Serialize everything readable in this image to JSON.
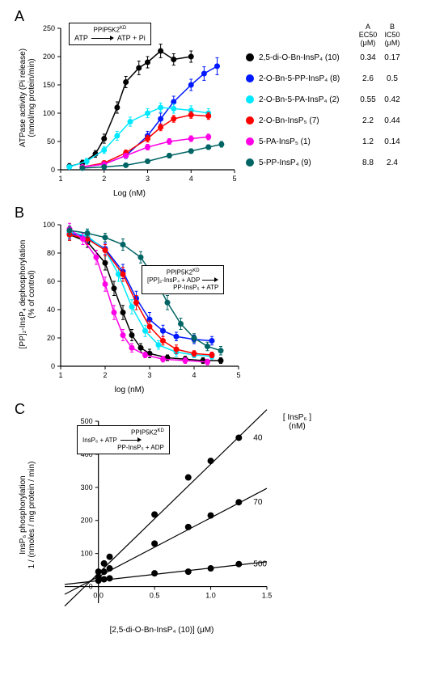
{
  "panelA": {
    "label": "A",
    "equation": {
      "top": "PPIP5K2",
      "top_sup": "KD",
      "left": "ATP",
      "right": "ATP + Pi"
    },
    "ylabel_line1": "ATPase activity (Pi release)",
    "ylabel_line2": "(nmol/mg protein/min)",
    "xlabel": "Log (nM)",
    "ylim": [
      0,
      250
    ],
    "ytick_step": 50,
    "xlim": [
      1,
      5
    ],
    "xtick_step": 1,
    "table_headers": {
      "a1": "A",
      "a2": "EC50",
      "a3": "(μM)",
      "b1": "B",
      "b2": "IC50",
      "b3": "(μM)"
    },
    "series": [
      {
        "color": "#000000",
        "label": "2,5-di-O-Bn-InsP₄ (10)",
        "ec50": "0.34",
        "ic50": "0.17",
        "points": [
          [
            1.2,
            6
          ],
          [
            1.5,
            12
          ],
          [
            1.8,
            28
          ],
          [
            2.0,
            55
          ],
          [
            2.3,
            110
          ],
          [
            2.5,
            155
          ],
          [
            2.8,
            180
          ],
          [
            3.0,
            190
          ],
          [
            3.3,
            210
          ],
          [
            3.6,
            195
          ],
          [
            4.0,
            200
          ]
        ],
        "err": [
          5,
          5,
          6,
          8,
          10,
          10,
          12,
          10,
          12,
          10,
          10
        ]
      },
      {
        "color": "#0018ff",
        "label": "2-O-Bn-5-PP-InsP₄ (8)",
        "ec50": "2.6",
        "ic50": "0.5",
        "points": [
          [
            1.5,
            5
          ],
          [
            2.0,
            10
          ],
          [
            2.5,
            25
          ],
          [
            3.0,
            60
          ],
          [
            3.3,
            90
          ],
          [
            3.6,
            120
          ],
          [
            4.0,
            150
          ],
          [
            4.3,
            170
          ],
          [
            4.6,
            183
          ]
        ],
        "err": [
          3,
          4,
          5,
          8,
          10,
          10,
          10,
          12,
          15
        ]
      },
      {
        "color": "#00e8ff",
        "label": "2-O-Bn-5-PA-InsP₄ (2)",
        "ec50": "0.55",
        "ic50": "0.42",
        "points": [
          [
            1.2,
            5
          ],
          [
            1.6,
            15
          ],
          [
            2.0,
            35
          ],
          [
            2.3,
            60
          ],
          [
            2.6,
            85
          ],
          [
            3.0,
            100
          ],
          [
            3.3,
            110
          ],
          [
            3.6,
            108
          ],
          [
            4.0,
            105
          ],
          [
            4.4,
            100
          ]
        ],
        "err": [
          3,
          5,
          6,
          8,
          8,
          8,
          8,
          8,
          8,
          8
        ]
      },
      {
        "color": "#ff0000",
        "label": "2-O-Bn-InsP₅ (7)",
        "ec50": "2.2",
        "ic50": "0.44",
        "points": [
          [
            1.5,
            5
          ],
          [
            2.0,
            12
          ],
          [
            2.5,
            30
          ],
          [
            3.0,
            55
          ],
          [
            3.3,
            75
          ],
          [
            3.6,
            90
          ],
          [
            4.0,
            97
          ],
          [
            4.4,
            95
          ]
        ],
        "err": [
          3,
          4,
          5,
          6,
          6,
          6,
          6,
          6
        ]
      },
      {
        "color": "#ff00e6",
        "label": "5-PA-InsP₅ (1)",
        "ec50": "1.2",
        "ic50": "0.14",
        "points": [
          [
            1.5,
            5
          ],
          [
            2.0,
            10
          ],
          [
            2.5,
            25
          ],
          [
            3.0,
            40
          ],
          [
            3.5,
            50
          ],
          [
            4.0,
            55
          ],
          [
            4.4,
            58
          ]
        ],
        "err": [
          3,
          3,
          4,
          5,
          5,
          5,
          5
        ]
      },
      {
        "color": "#006464",
        "label": "5-PP-InsP₄ (9)",
        "ec50": "8.8",
        "ic50": "2.4",
        "points": [
          [
            1.5,
            3
          ],
          [
            2.0,
            5
          ],
          [
            2.5,
            8
          ],
          [
            3.0,
            15
          ],
          [
            3.5,
            25
          ],
          [
            4.0,
            33
          ],
          [
            4.4,
            40
          ],
          [
            4.7,
            45
          ]
        ],
        "err": [
          2,
          2,
          3,
          3,
          4,
          4,
          4,
          5
        ]
      }
    ]
  },
  "panelB": {
    "label": "B",
    "equation_top": "PPIP5K2",
    "equation_top_sup": "KD",
    "equation_left": "[PP]₂-InsP₄ + ADP",
    "equation_right": "PP-InsP₅ + ATP",
    "ylabel_line1": "[PP]₂-InsP₄ dephosphorylation",
    "ylabel_line2": "(% of control)",
    "xlabel": "log (nM)",
    "ylim": [
      0,
      100
    ],
    "ytick_step": 20,
    "xlim": [
      1,
      5
    ],
    "xtick_step": 1,
    "series": [
      {
        "color": "#000000",
        "points": [
          [
            1.2,
            93
          ],
          [
            1.6,
            88
          ],
          [
            2.0,
            73
          ],
          [
            2.2,
            55
          ],
          [
            2.4,
            38
          ],
          [
            2.6,
            22
          ],
          [
            2.8,
            13
          ],
          [
            3.0,
            9
          ],
          [
            3.4,
            6
          ],
          [
            3.8,
            5
          ],
          [
            4.2,
            4
          ],
          [
            4.6,
            4
          ]
        ],
        "err": [
          4,
          4,
          5,
          5,
          5,
          4,
          3,
          3,
          2,
          2,
          2,
          2
        ]
      },
      {
        "color": "#0018ff",
        "points": [
          [
            1.2,
            94
          ],
          [
            1.6,
            91
          ],
          [
            2.0,
            83
          ],
          [
            2.4,
            67
          ],
          [
            2.7,
            48
          ],
          [
            3.0,
            33
          ],
          [
            3.3,
            25
          ],
          [
            3.6,
            21
          ],
          [
            4.0,
            19
          ],
          [
            4.4,
            18
          ]
        ],
        "err": [
          4,
          4,
          4,
          5,
          5,
          5,
          4,
          3,
          3,
          3
        ]
      },
      {
        "color": "#00e8ff",
        "points": [
          [
            1.2,
            95
          ],
          [
            1.6,
            92
          ],
          [
            2.0,
            82
          ],
          [
            2.3,
            65
          ],
          [
            2.6,
            42
          ],
          [
            2.9,
            25
          ],
          [
            3.2,
            15
          ],
          [
            3.6,
            10
          ],
          [
            4.0,
            8
          ],
          [
            4.4,
            7
          ]
        ],
        "err": [
          4,
          4,
          4,
          5,
          5,
          4,
          3,
          3,
          2,
          2
        ]
      },
      {
        "color": "#ff0000",
        "points": [
          [
            1.2,
            93
          ],
          [
            1.6,
            90
          ],
          [
            2.0,
            82
          ],
          [
            2.4,
            65
          ],
          [
            2.7,
            45
          ],
          [
            3.0,
            28
          ],
          [
            3.3,
            18
          ],
          [
            3.6,
            12
          ],
          [
            4.0,
            9
          ],
          [
            4.4,
            8
          ]
        ],
        "err": [
          4,
          4,
          4,
          5,
          5,
          4,
          3,
          3,
          2,
          2
        ]
      },
      {
        "color": "#ff00e6",
        "points": [
          [
            1.2,
            97
          ],
          [
            1.5,
            90
          ],
          [
            1.8,
            77
          ],
          [
            2.0,
            58
          ],
          [
            2.2,
            38
          ],
          [
            2.4,
            22
          ],
          [
            2.6,
            13
          ],
          [
            2.9,
            8
          ],
          [
            3.3,
            5
          ],
          [
            3.8,
            4
          ],
          [
            4.3,
            3
          ]
        ],
        "err": [
          4,
          4,
          5,
          5,
          5,
          4,
          3,
          2,
          2,
          2,
          2
        ]
      },
      {
        "color": "#006464",
        "points": [
          [
            1.2,
            96
          ],
          [
            1.6,
            94
          ],
          [
            2.0,
            91
          ],
          [
            2.4,
            86
          ],
          [
            2.8,
            77
          ],
          [
            3.1,
            63
          ],
          [
            3.4,
            45
          ],
          [
            3.7,
            30
          ],
          [
            4.0,
            20
          ],
          [
            4.3,
            14
          ],
          [
            4.6,
            11
          ]
        ],
        "err": [
          3,
          3,
          3,
          4,
          4,
          5,
          5,
          4,
          3,
          3,
          3
        ]
      }
    ]
  },
  "panelC": {
    "label": "C",
    "equation_top": "PPIP5K2",
    "equation_top_sup": "KD",
    "equation_left": "InsP₆ + ATP",
    "equation_right": "PP-InsP₅ + ADP",
    "ylabel_line1": "InsP₆ phosphorylation",
    "ylabel_line2": "1 / (nmoles / mg protein / min)",
    "xlabel": "[2,5-di-O-Bn-InsP₄ (10)] (μM)",
    "rlabel_line1": "[ InsP₆ ]",
    "rlabel_line2": "(nM)",
    "ylim": [
      -50,
      500
    ],
    "yticks": [
      0,
      100,
      200,
      300,
      400,
      500
    ],
    "xlim": [
      -0.3,
      1.5
    ],
    "xticks": [
      0.0,
      0.5,
      1.0,
      1.5
    ],
    "lines": [
      {
        "label": "40",
        "points": [
          [
            0,
            45
          ],
          [
            0.05,
            70
          ],
          [
            0.1,
            90
          ],
          [
            0.5,
            218
          ],
          [
            0.8,
            330
          ],
          [
            1.0,
            380
          ],
          [
            1.25,
            450
          ]
        ],
        "slope": 330,
        "intercept": 40
      },
      {
        "label": "70",
        "points": [
          [
            0,
            30
          ],
          [
            0.05,
            45
          ],
          [
            0.1,
            55
          ],
          [
            0.5,
            130
          ],
          [
            0.8,
            180
          ],
          [
            1.0,
            215
          ],
          [
            1.25,
            255
          ]
        ],
        "slope": 178,
        "intercept": 30
      },
      {
        "label": "500",
        "points": [
          [
            0,
            18
          ],
          [
            0.05,
            22
          ],
          [
            0.1,
            25
          ],
          [
            0.5,
            40
          ],
          [
            0.8,
            45
          ],
          [
            1.0,
            55
          ],
          [
            1.25,
            68
          ]
        ],
        "slope": 38,
        "intercept": 18
      }
    ]
  }
}
